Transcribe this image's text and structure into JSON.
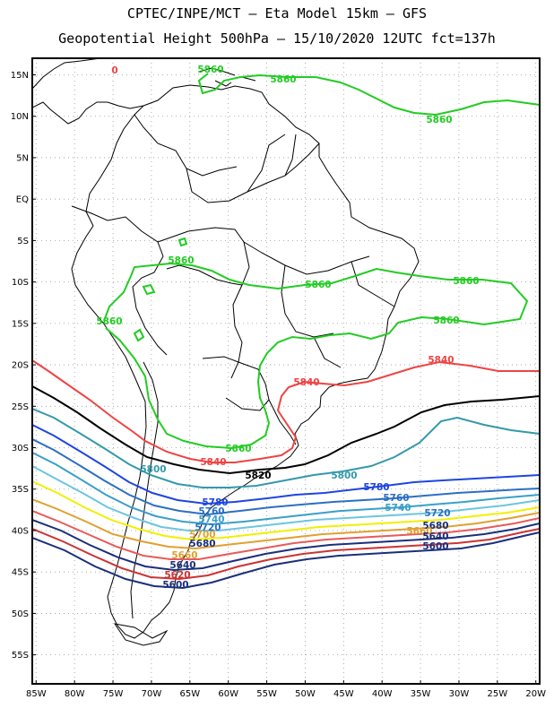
{
  "header": {
    "title_line1": "CPTEC/INPE/MCT –  Eta Model 15km – GFS",
    "title_line2": "Geopotential Height 500hPa – 15/10/2020 12UTC fct=137h"
  },
  "axes": {
    "lat_labels": [
      "15N",
      "10N",
      "5N",
      "EQ",
      "5S",
      "10S",
      "15S",
      "20S",
      "25S",
      "30S",
      "35S",
      "40S",
      "45S",
      "50S",
      "55S"
    ],
    "lat_values": [
      15,
      10,
      5,
      0,
      -5,
      -10,
      -15,
      -20,
      -25,
      -30,
      -35,
      -40,
      -45,
      -50,
      -55
    ],
    "lon_labels": [
      "85W",
      "80W",
      "75W",
      "70W",
      "65W",
      "60W",
      "55W",
      "50W",
      "45W",
      "40W",
      "35W",
      "30W",
      "25W",
      "20W"
    ],
    "lon_values": [
      -85,
      -80,
      -75,
      -70,
      -65,
      -60,
      -55,
      -50,
      -45,
      -40,
      -35,
      -30,
      -25,
      -20
    ],
    "lon_range": [
      -85.5,
      -19.5
    ],
    "lat_range": [
      -58.5,
      17
    ],
    "grid": "dotted"
  },
  "contours": [
    {
      "level": "5860",
      "color": "#22cc22"
    },
    {
      "level": "5840",
      "color": "#ee4444"
    },
    {
      "level": "5820",
      "color": "#000000"
    },
    {
      "level": "5800",
      "color": "#3399aa"
    },
    {
      "level": "5780",
      "color": "#1f45e0"
    },
    {
      "level": "5760",
      "color": "#2c6fc2"
    },
    {
      "level": "5740",
      "color": "#39a0c8"
    },
    {
      "level": "5720",
      "color": "#6cc5e0"
    },
    {
      "level": "5700",
      "color": "#f0f000"
    },
    {
      "level": "5680",
      "color": "#e0a030"
    },
    {
      "level": "5660",
      "color": "#e85a5a"
    },
    {
      "level": "5640",
      "color": "#1a2f7a"
    },
    {
      "level": "5620",
      "color": "#cc3333"
    },
    {
      "level": "5600",
      "color": "#1a2f7a"
    }
  ],
  "labels": {
    "zero_marker": "0",
    "l5860a": "5860",
    "l5860b": "5860",
    "l5860c": "5860",
    "l5860d": "5860",
    "l5860e": "5860",
    "l5860f": "5860",
    "l5860g": "5860",
    "l5860h": "5860",
    "l5860i": "5860",
    "l5840a": "5840",
    "l5840b": "5840",
    "l5840c": "5840",
    "l5820": "5820",
    "l5800a": "5800",
    "l5800b": "5800",
    "l5780a": "5780",
    "l5780b": "5780",
    "l5760a": "5760",
    "l5760b": "5760",
    "l5740a": "5740",
    "l5740b": "5740",
    "l5720a": "5720",
    "l5720b": "5720",
    "l5700": "5700",
    "l5680": "5680",
    "l5680b": "5680",
    "l5660": "5660",
    "l5660b": "5660",
    "l5640a": "5640",
    "l5640b": "5640",
    "l5620": "5620",
    "l5600a": "5600",
    "l5600b": "5600"
  }
}
